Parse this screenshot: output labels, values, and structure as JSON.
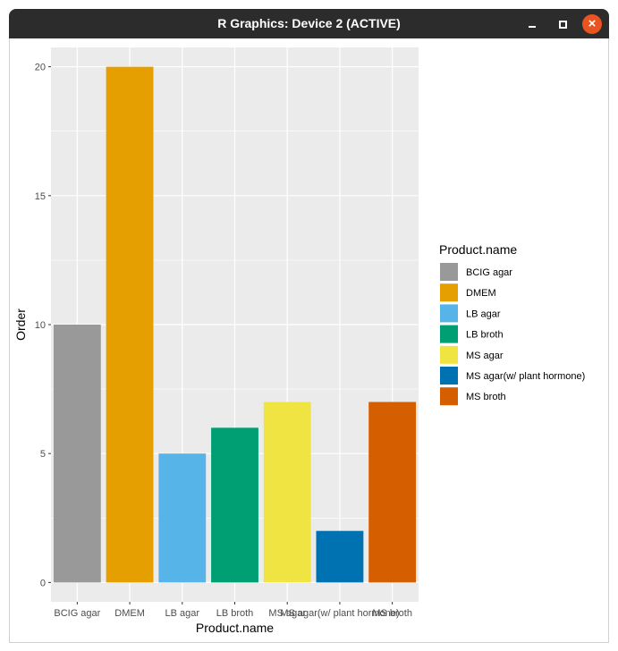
{
  "window": {
    "title": "R Graphics: Device 2 (ACTIVE)",
    "buttons": {
      "minimize": "minimize",
      "maximize": "maximize",
      "close": "close"
    }
  },
  "chart_data": {
    "type": "bar",
    "xlabel": "Product.name",
    "ylabel": "Order",
    "categories": [
      "BCIG agar",
      "DMEM",
      "LB agar",
      "LB broth",
      "MS agar",
      "MS agar(w/ plant hormone)",
      "MS broth"
    ],
    "values": [
      10,
      20,
      5,
      6,
      7,
      2,
      7
    ],
    "colors": [
      "#999999",
      "#E69F00",
      "#56B4E9",
      "#009E73",
      "#F0E442",
      "#0072B2",
      "#D55E00"
    ],
    "ylim": [
      -0.75,
      20.75
    ],
    "yticks": [
      0,
      5,
      10,
      15,
      20
    ],
    "grid": true,
    "panel_background": "#EBEBEB",
    "legend": {
      "title": "Product.name",
      "position": "right",
      "entries": [
        "BCIG agar",
        "DMEM",
        "LB agar",
        "LB broth",
        "MS agar",
        "MS agar(w/ plant hormone)",
        "MS broth"
      ]
    }
  }
}
